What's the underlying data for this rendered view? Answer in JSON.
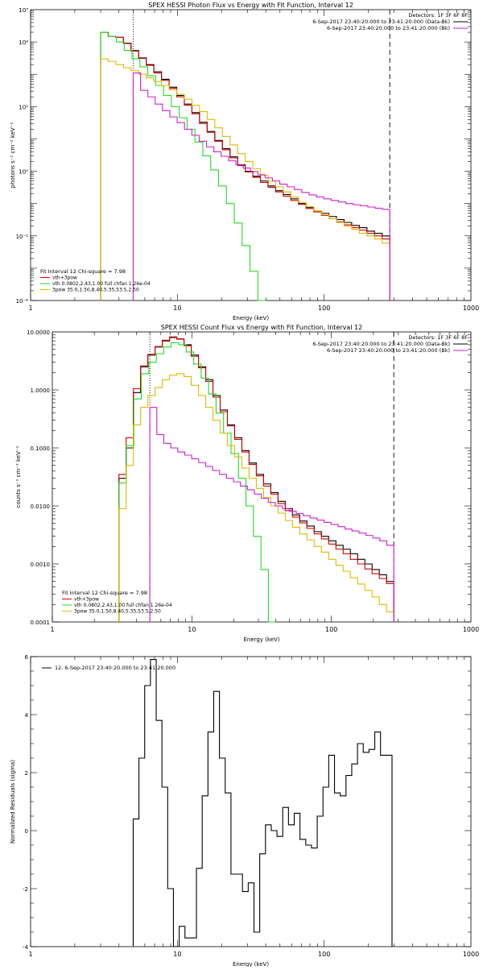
{
  "colors": {
    "black": "#000000",
    "red": "#d40000",
    "green": "#22dd22",
    "yellow": "#ddbb00",
    "magenta": "#cc22cc"
  },
  "chart_data": [
    {
      "id": "photon",
      "type": "line",
      "title": "SPEX HESSI Photon Flux vs Energy with Fit Function, Interval 12",
      "xlabel": "Energy (keV)",
      "ylabel": "photons s⁻¹ cm⁻² keV⁻¹",
      "xscale": "log",
      "yscale": "log",
      "xlim": [
        1,
        1000
      ],
      "ylim": [
        0.0001,
        100000
      ],
      "xticks": [
        {
          "v": 1,
          "label": "1"
        },
        {
          "v": 10,
          "label": "10"
        },
        {
          "v": 100,
          "label": "100"
        },
        {
          "v": 1000,
          "label": "1000"
        }
      ],
      "yticks": [
        {
          "v": 0.0001,
          "label": "10⁻⁴"
        },
        {
          "v": 0.01,
          "label": "10⁻²"
        },
        {
          "v": 1,
          "label": "10⁰"
        },
        {
          "v": 100,
          "label": "10²"
        },
        {
          "v": 10000,
          "label": "10⁴"
        },
        {
          "v": 100000,
          "label": "10⁵"
        }
      ],
      "vlines": [
        {
          "x": 5,
          "style": "dotted"
        },
        {
          "x": 280,
          "style": "dashed"
        }
      ],
      "top_right": [
        "Detectors: 1F 3F 6F 8F",
        "6-Sep-2017 23:40:20.000 to 23:41:20.000 (Data-Bk)",
        "6-Sep-2017 23:40:20.000 to 23:41:20.000 (Bk)"
      ],
      "top_right_colors": [
        "black",
        "magenta"
      ],
      "bottom_left": [
        {
          "text": "Fit Interval 12    Chi-square = 7.98",
          "color": "black"
        },
        {
          "text": "vth+3pow",
          "color": "red"
        },
        {
          "text": "vth 0.0802,2.43,1.00  full chfan 1.26e-04",
          "color": "green"
        },
        {
          "text": "3pow 35.0,1.50,8.40,5.35,53.5,2.50",
          "color": "yellow"
        }
      ],
      "series": [
        {
          "name": "Data-Bk",
          "color": "black",
          "xmin": 3,
          "xmax": 280,
          "values": [
            20000,
            15000,
            14000,
            9200,
            5400,
            3200,
            2000,
            1200,
            700,
            400,
            220,
            120,
            65,
            33,
            17,
            9,
            5,
            2.8,
            1.6,
            1,
            0.7,
            0.5,
            0.35,
            0.25,
            0.19,
            0.14,
            0.1,
            0.075,
            0.06,
            0.05,
            0.04,
            0.032,
            0.026,
            0.021,
            0.018,
            0.014,
            0.012,
            0.01
          ]
        },
        {
          "name": "vth+3pow",
          "color": "red",
          "xmin": 3,
          "xmax": 280,
          "values": [
            20000,
            15000,
            14000,
            9000,
            5200,
            3100,
            1900,
            1100,
            650,
            370,
            200,
            110,
            60,
            30,
            16,
            8.5,
            4.6,
            2.6,
            1.5,
            0.95,
            0.65,
            0.45,
            0.32,
            0.23,
            0.17,
            0.125,
            0.095,
            0.07,
            0.055,
            0.043,
            0.034,
            0.027,
            0.022,
            0.018,
            0.015,
            0.012,
            0.01,
            0.008
          ]
        },
        {
          "name": "vth",
          "color": "green",
          "xmin": 3,
          "xmax": 40,
          "values": [
            20000,
            15000,
            10000,
            5500,
            3000,
            1700,
            900,
            450,
            220,
            100,
            45,
            20,
            8,
            3,
            1.1,
            0.35,
            0.1,
            0.025,
            0.005,
            0.0008,
            0.0001
          ]
        },
        {
          "name": "3pow",
          "color": "yellow",
          "xmin": 3,
          "xmax": 280,
          "values": [
            3000,
            2500,
            2000,
            1600,
            1300,
            1000,
            780,
            600,
            450,
            330,
            240,
            170,
            110,
            70,
            40,
            22,
            12,
            6.5,
            3.5,
            2,
            1.2,
            0.75,
            0.5,
            0.33,
            0.23,
            0.16,
            0.11,
            0.08,
            0.06,
            0.045,
            0.034,
            0.026,
            0.02,
            0.016,
            0.012,
            0.01,
            0.008,
            0.006
          ]
        },
        {
          "name": "Bk",
          "color": "magenta",
          "xmin": 5,
          "xmax": 280,
          "values": [
            1100,
            320,
            200,
            120,
            75,
            48,
            32,
            20,
            13,
            8.5,
            5.7,
            4,
            2.9,
            2.1,
            1.6,
            1.25,
            0.98,
            0.78,
            0.62,
            0.5,
            0.4,
            0.33,
            0.27,
            0.22,
            0.185,
            0.16,
            0.14,
            0.125,
            0.112,
            0.1,
            0.092,
            0.085,
            0.078,
            0.072,
            0.066
          ]
        }
      ]
    },
    {
      "id": "count",
      "type": "line",
      "title": "SPEX HESSI Count Flux vs Energy with Fit Function, Interval 12",
      "xlabel": "Energy (keV)",
      "ylabel": "counts s⁻¹ cm⁻² keV⁻¹",
      "xscale": "log",
      "yscale": "log",
      "xlim": [
        1,
        1000
      ],
      "ylim": [
        0.0001,
        10
      ],
      "xticks": [
        {
          "v": 1,
          "label": "1"
        },
        {
          "v": 10,
          "label": "10"
        },
        {
          "v": 100,
          "label": "100"
        },
        {
          "v": 1000,
          "label": "1000"
        }
      ],
      "yticks": [
        {
          "v": 0.0001,
          "label": "0.0001"
        },
        {
          "v": 0.001,
          "label": "0.0010"
        },
        {
          "v": 0.01,
          "label": "0.0100"
        },
        {
          "v": 0.1,
          "label": "0.1000"
        },
        {
          "v": 1,
          "label": "1.0000"
        },
        {
          "v": 10,
          "label": "10.0000"
        }
      ],
      "vlines": [
        {
          "x": 5,
          "style": "dotted"
        },
        {
          "x": 280,
          "style": "dashed"
        }
      ],
      "top_right": [
        "Detectors: 1F 3F 6F 8F",
        "6-Sep-2017 23:40:20.000 to 23:41:20.000 (Data-Bk)",
        "6-Sep-2017 23:40:20.000 to 23:41:20.000 (Bk)"
      ],
      "top_right_colors": [
        "black",
        "magenta"
      ],
      "bottom_left": [
        {
          "text": "Fit Interval 12    Chi-square = 7.98",
          "color": "black"
        },
        {
          "text": "vth+3pow",
          "color": "red"
        },
        {
          "text": "vth 0.0802,2.43,1.00  full chfan 1.26e-04",
          "color": "green"
        },
        {
          "text": "3pow 35.0,1.50,8.40,5.35,53.5,2.50",
          "color": "yellow"
        }
      ],
      "series": [
        {
          "name": "Data-Bk",
          "color": "black",
          "xmin": 3,
          "xmax": 280,
          "values": [
            0.03,
            0.1,
            0.9,
            2.5,
            4,
            5.5,
            7,
            8,
            7.5,
            6,
            4,
            2.5,
            1.5,
            0.8,
            0.45,
            0.25,
            0.15,
            0.09,
            0.055,
            0.035,
            0.024,
            0.017,
            0.012,
            0.009,
            0.007,
            0.0055,
            0.0045,
            0.0036,
            0.003,
            0.0025,
            0.0021,
            0.0018,
            0.0015,
            0.0012,
            0.001,
            0.0008,
            0.00065,
            0.0005
          ]
        },
        {
          "name": "vth+3pow",
          "color": "red",
          "xmin": 3,
          "xmax": 280,
          "values": [
            0.035,
            0.15,
            1.05,
            2.6,
            4.1,
            5.6,
            7.2,
            8.2,
            7.6,
            5.8,
            3.8,
            2.4,
            1.4,
            0.75,
            0.42,
            0.24,
            0.14,
            0.085,
            0.052,
            0.033,
            0.022,
            0.016,
            0.011,
            0.0083,
            0.0064,
            0.0051,
            0.0041,
            0.0033,
            0.0027,
            0.0022,
            0.0018,
            0.0015,
            0.0012,
            0.001,
            0.00082,
            0.00068,
            0.00056,
            0.00046
          ]
        },
        {
          "name": "vth",
          "color": "green",
          "xmin": 3,
          "xmax": 40,
          "values": [
            0.025,
            0.11,
            0.7,
            1.9,
            3,
            4.2,
            5.5,
            6.5,
            6,
            4.5,
            2.8,
            1.6,
            0.85,
            0.4,
            0.18,
            0.08,
            0.03,
            0.01,
            0.003,
            0.0008,
            0.0001
          ]
        },
        {
          "name": "3pow",
          "color": "yellow",
          "xmin": 3,
          "xmax": 280,
          "values": [
            0.009,
            0.05,
            0.25,
            0.5,
            0.8,
            1.1,
            1.5,
            1.8,
            1.9,
            1.7,
            1.2,
            0.8,
            0.5,
            0.3,
            0.18,
            0.11,
            0.07,
            0.045,
            0.03,
            0.02,
            0.014,
            0.01,
            0.0075,
            0.0056,
            0.0043,
            0.0033,
            0.0026,
            0.002,
            0.0016,
            0.0012,
            0.00095,
            0.00075,
            0.00058,
            0.00045,
            0.00035,
            0.00027,
            0.0002,
            0.00015
          ]
        },
        {
          "name": "Bk",
          "color": "magenta",
          "xmin": 5,
          "xmax": 280,
          "values": [
            0.5,
            0.17,
            0.12,
            0.1,
            0.085,
            0.075,
            0.065,
            0.056,
            0.048,
            0.041,
            0.035,
            0.03,
            0.026,
            0.022,
            0.019,
            0.016,
            0.0135,
            0.0115,
            0.01,
            0.009,
            0.0081,
            0.0074,
            0.0068,
            0.0062,
            0.0057,
            0.0052,
            0.0048,
            0.0044,
            0.004,
            0.0037,
            0.0034,
            0.0031,
            0.0028,
            0.0025,
            0.0021
          ]
        }
      ]
    },
    {
      "id": "resid",
      "type": "line",
      "title": "",
      "xlabel": "Energy (keV)",
      "ylabel": "Normalized Residuals (sigma)",
      "xscale": "log",
      "yscale": "linear",
      "xlim": [
        1,
        1000
      ],
      "ylim": [
        -4,
        6
      ],
      "xticks": [
        {
          "v": 1,
          "label": "1"
        },
        {
          "v": 10,
          "label": "10"
        },
        {
          "v": 100,
          "label": "100"
        },
        {
          "v": 1000,
          "label": "1000"
        }
      ],
      "yticks": [
        {
          "v": -4,
          "label": "-4"
        },
        {
          "v": -2,
          "label": "-2"
        },
        {
          "v": 0,
          "label": "0"
        },
        {
          "v": 2,
          "label": "2"
        },
        {
          "v": 4,
          "label": "4"
        },
        {
          "v": 6,
          "label": "6"
        }
      ],
      "vlines": [],
      "top_left": "12. 6-Sep-2017 23:40:20.000 to 23:41:20.000",
      "series": [
        {
          "name": "",
          "color": "black",
          "xmin": 5,
          "xmax": 290,
          "values": [
            0.4,
            2.5,
            5,
            5.9,
            3.8,
            1.5,
            -2,
            -4,
            -3.3,
            -3.7,
            -3.7,
            -1.3,
            1.2,
            3.4,
            4.8,
            2.5,
            1.3,
            -1.5,
            -1.5,
            -2.1,
            -1.8,
            -3.5,
            -0.8,
            0.2,
            0,
            -0.2,
            0.8,
            0.2,
            0.6,
            -0.3,
            -0.5,
            -0.6,
            0.5,
            1.5,
            2.6,
            1.3,
            1.2,
            1.9,
            2.3,
            3,
            2.7,
            2.8,
            3.4,
            2.6,
            2.6
          ]
        }
      ]
    }
  ]
}
